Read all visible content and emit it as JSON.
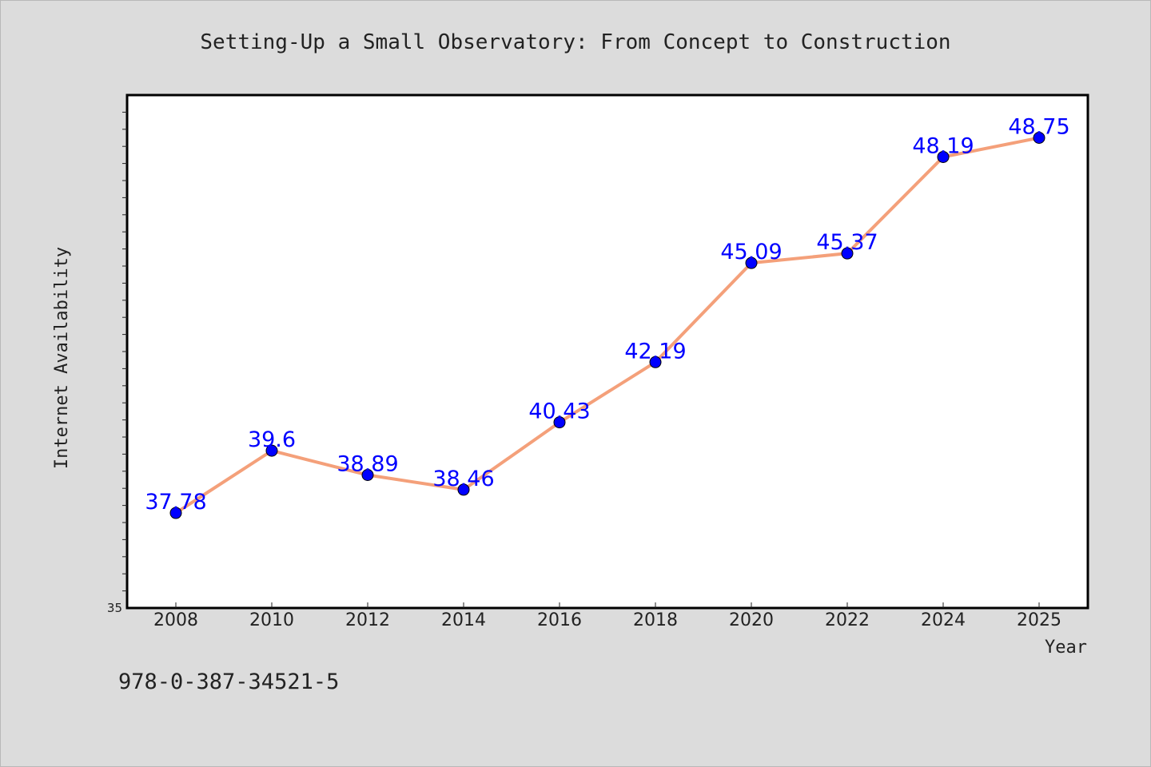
{
  "chart_data": {
    "type": "line",
    "title": "Setting-Up a Small Observatory: From Concept to Construction",
    "xlabel": "Year",
    "ylabel": "Internet Availability",
    "categories": [
      "2008",
      "2010",
      "2012",
      "2014",
      "2016",
      "2018",
      "2020",
      "2022",
      "2024",
      "2025"
    ],
    "series": [
      {
        "values": [
          37.78,
          39.6,
          38.89,
          38.46,
          40.43,
          42.19,
          45.09,
          45.37,
          48.19,
          48.75
        ],
        "labels": [
          "37.78",
          "39.6",
          "38.89",
          "38.46",
          "40.43",
          "42.19",
          "45.09",
          "45.37",
          "48.19",
          "48.75"
        ]
      }
    ],
    "ylim": [
      35,
      50
    ],
    "yticks_labeled": [
      "35"
    ],
    "grid": false,
    "legend": "none",
    "colors": {
      "line": "#f4a07a",
      "marker": "#0000ff",
      "data_label": "#0000ff",
      "background": "#dcdcdc",
      "plot_background": "#ffffff"
    }
  },
  "footer": {
    "isbn": "978-0-387-34521-5"
  }
}
